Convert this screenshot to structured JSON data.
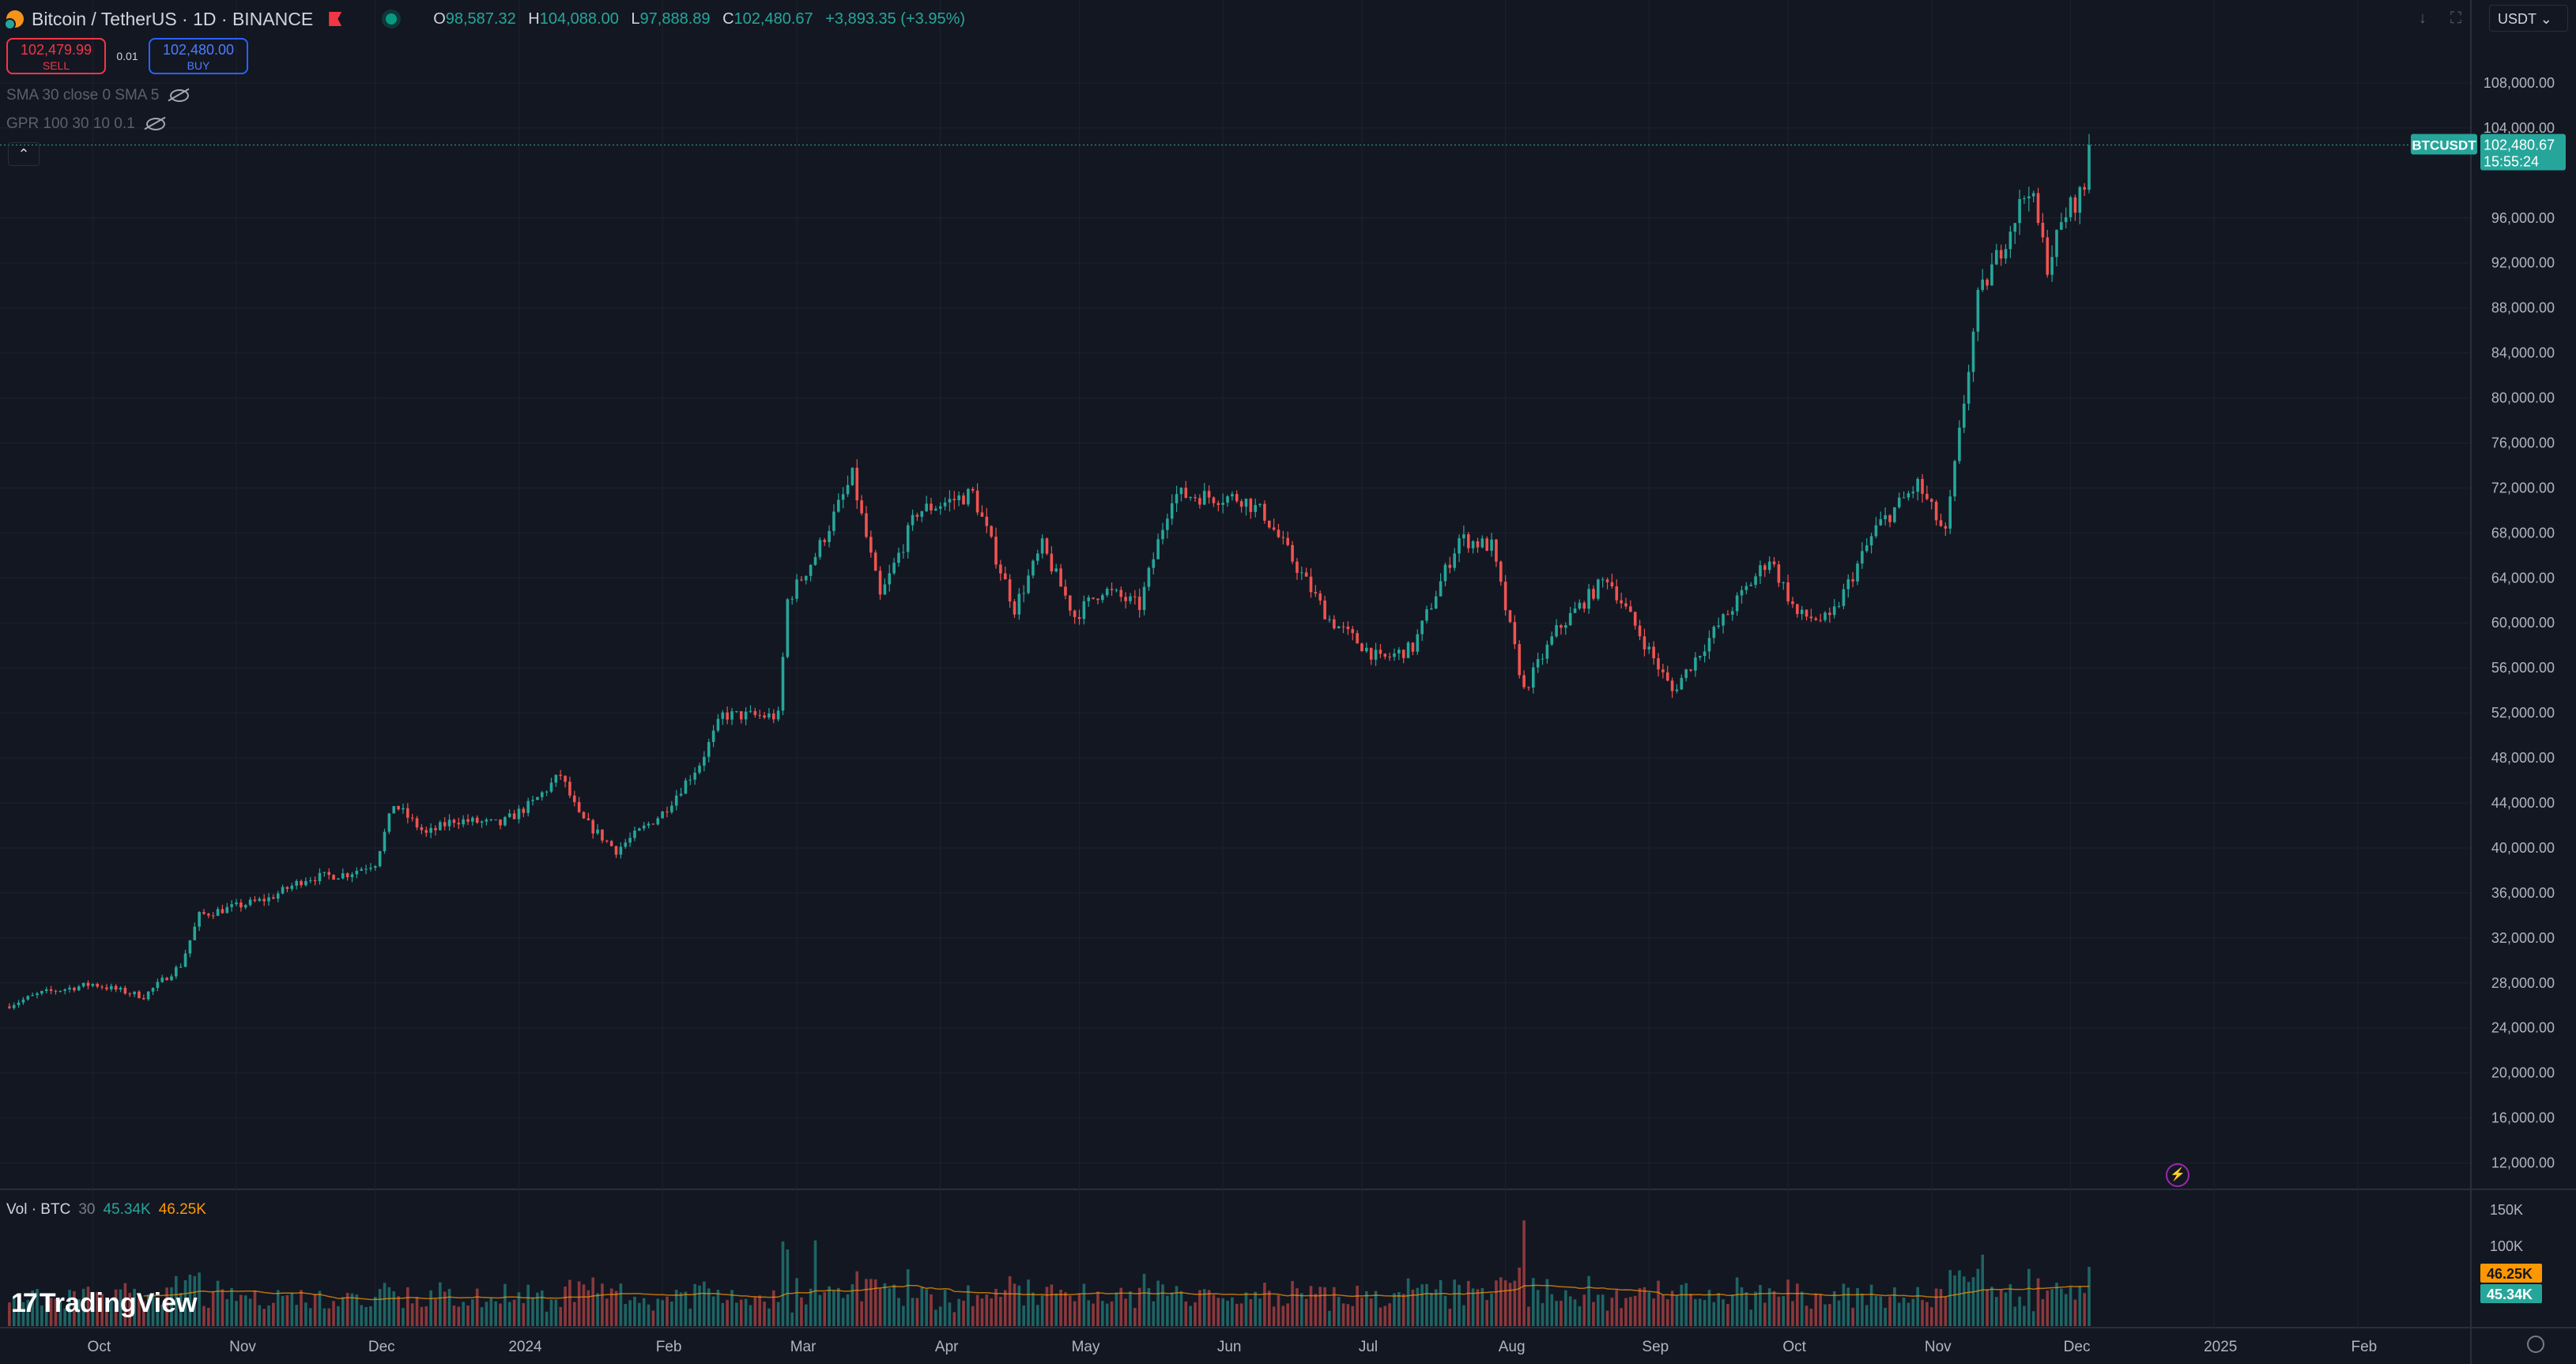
{
  "header": {
    "symbol": "Bitcoin / TetherUS · 1D · BINANCE",
    "ohlc": {
      "o_label": "O",
      "o": "98,587.32",
      "h_label": "H",
      "h": "104,088.00",
      "l_label": "L",
      "l": "97,888.89",
      "c_label": "C",
      "c": "102,480.67",
      "change": "+3,893.35 (+3.95%)"
    },
    "currency": "USDT",
    "colors": {
      "up": "#26a69a",
      "down": "#ef5350",
      "background": "#131722"
    }
  },
  "trade": {
    "sell_price": "102,479.99",
    "sell_label": "SELL",
    "spread": "0.01",
    "buy_price": "102,480.00",
    "buy_label": "BUY"
  },
  "indicators": [
    {
      "label": "SMA 30 close 0 SMA 5"
    },
    {
      "label": "GPR 100 30 10 0.1"
    }
  ],
  "price_tag": {
    "symbol": "BTCUSDT",
    "price": "102,480.67",
    "countdown": "15:55:24"
  },
  "volume_legend": {
    "label": "Vol · BTC",
    "length": "30",
    "value": "45.34K",
    "ma_value": "46.25K"
  },
  "branding": {
    "name": "TradingView"
  },
  "chart_data": {
    "type": "candlestick",
    "series_name": "BTCUSDT",
    "price_axis": {
      "ticks": [
        "12,000.00",
        "16,000.00",
        "20,000.00",
        "24,000.00",
        "28,000.00",
        "32,000.00",
        "36,000.00",
        "40,000.00",
        "44,000.00",
        "48,000.00",
        "52,000.00",
        "56,000.00",
        "60,000.00",
        "64,000.00",
        "68,000.00",
        "72,000.00",
        "76,000.00",
        "80,000.00",
        "84,000.00",
        "88,000.00",
        "92,000.00",
        "96,000.00",
        "104,000.00",
        "108,000.00"
      ],
      "ylim": [
        10000,
        112000
      ]
    },
    "volume_axis": {
      "ticks": [
        "150K",
        "100K"
      ]
    },
    "time_axis": {
      "labels": [
        "Oct",
        "Nov",
        "Dec",
        "2024",
        "Feb",
        "Mar",
        "Apr",
        "May",
        "Jun",
        "Jul",
        "Aug",
        "Sep",
        "Oct",
        "Nov",
        "Dec",
        "2025",
        "Feb"
      ],
      "start": "2023-09-12"
    },
    "approx_closes_by_month": [
      {
        "month": "2023-09",
        "close": 26900
      },
      {
        "month": "2023-10",
        "close": 34600
      },
      {
        "month": "2023-11",
        "close": 37700
      },
      {
        "month": "2023-12",
        "close": 42300
      },
      {
        "month": "2024-01",
        "close": 42600
      },
      {
        "month": "2024-02",
        "close": 61100
      },
      {
        "month": "2024-03",
        "close": 71300
      },
      {
        "month": "2024-04",
        "close": 60600
      },
      {
        "month": "2024-05",
        "close": 67500
      },
      {
        "month": "2024-06",
        "close": 62700
      },
      {
        "month": "2024-07",
        "close": 64600
      },
      {
        "month": "2024-08",
        "close": 58900
      },
      {
        "month": "2024-09",
        "close": 63300
      },
      {
        "month": "2024-10",
        "close": 70300
      },
      {
        "month": "2024-11",
        "close": 96400
      },
      {
        "month": "2024-12",
        "close": 102480.67
      }
    ],
    "waypoints": [
      [
        "2023-09-12",
        25900
      ],
      [
        "2023-09-20",
        27100
      ],
      [
        "2023-10-01",
        27900
      ],
      [
        "2023-10-12",
        26800
      ],
      [
        "2023-10-20",
        29600
      ],
      [
        "2023-10-24",
        34000
      ],
      [
        "2023-11-08",
        35500
      ],
      [
        "2023-11-16",
        37300
      ],
      [
        "2023-11-25",
        37700
      ],
      [
        "2023-12-01",
        38700
      ],
      [
        "2023-12-05",
        43900
      ],
      [
        "2023-12-12",
        41200
      ],
      [
        "2023-12-18",
        42500
      ],
      [
        "2023-12-28",
        42100
      ],
      [
        "2024-01-04",
        44000
      ],
      [
        "2024-01-10",
        46500
      ],
      [
        "2024-01-14",
        42800
      ],
      [
        "2024-01-22",
        39800
      ],
      [
        "2024-02-01",
        43100
      ],
      [
        "2024-02-09",
        47500
      ],
      [
        "2024-02-14",
        51800
      ],
      [
        "2024-02-26",
        51700
      ],
      [
        "2024-02-28",
        62000
      ],
      [
        "2024-03-05",
        66000
      ],
      [
        "2024-03-13",
        73000
      ],
      [
        "2024-03-19",
        62200
      ],
      [
        "2024-03-27",
        69900
      ],
      [
        "2024-04-08",
        71500
      ],
      [
        "2024-04-12",
        67000
      ],
      [
        "2024-04-17",
        61300
      ],
      [
        "2024-04-23",
        66800
      ],
      [
        "2024-04-30",
        60600
      ],
      [
        "2024-05-06",
        63000
      ],
      [
        "2024-05-14",
        61500
      ],
      [
        "2024-05-21",
        71400
      ],
      [
        "2024-06-05",
        71100
      ],
      [
        "2024-06-10",
        69600
      ],
      [
        "2024-06-24",
        60300
      ],
      [
        "2024-07-05",
        56700
      ],
      [
        "2024-07-12",
        57800
      ],
      [
        "2024-07-22",
        67500
      ],
      [
        "2024-07-29",
        66800
      ],
      [
        "2024-08-05",
        54000
      ],
      [
        "2024-08-12",
        59300
      ],
      [
        "2024-08-23",
        64100
      ],
      [
        "2024-09-06",
        53900
      ],
      [
        "2024-09-15",
        59200
      ],
      [
        "2024-09-27",
        65800
      ],
      [
        "2024-10-03",
        60700
      ],
      [
        "2024-10-10",
        60200
      ],
      [
        "2024-10-20",
        68400
      ],
      [
        "2024-10-29",
        72300
      ],
      [
        "2024-11-04",
        67800
      ],
      [
        "2024-11-11",
        88700
      ],
      [
        "2024-11-22",
        98900
      ],
      [
        "2024-11-26",
        91900
      ],
      [
        "2024-11-30",
        96400
      ],
      [
        "2024-12-04",
        98600
      ],
      [
        "2024-12-05",
        102480.67
      ]
    ]
  }
}
